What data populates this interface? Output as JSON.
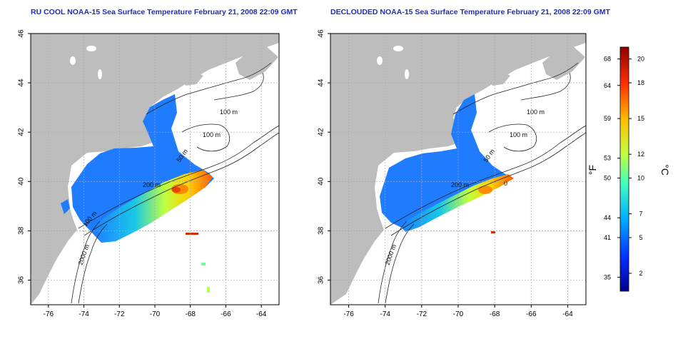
{
  "panels": [
    {
      "title": "RU COOL NOAA-15 Sea Surface Temperature February 21, 2008 22:09 GMT",
      "contours": [
        "100 m",
        "100 m",
        "50 m",
        "200 m",
        "100 m",
        "2000 m"
      ]
    },
    {
      "title": "DECLOUDED NOAA-15 Sea Surface Temperature February 21, 2008 22:09 GMT",
      "contours": [
        "100 m",
        "100 m",
        "50 m",
        "200 m",
        "0",
        "2000 m"
      ]
    }
  ],
  "axes": {
    "x_ticks": [
      "-76",
      "-74",
      "-72",
      "-70",
      "-68",
      "-66",
      "-64"
    ],
    "y_ticks": [
      "36",
      "38",
      "40",
      "42",
      "44",
      "46"
    ],
    "xlim": [
      -77,
      -63
    ],
    "ylim": [
      35,
      46
    ]
  },
  "colorbar": {
    "unit_f": "°F",
    "unit_c": "°C",
    "f_ticks": [
      "68",
      "64",
      "59",
      "53",
      "50",
      "44",
      "41",
      "35"
    ],
    "c_ticks": [
      "20",
      "18",
      "15",
      "12",
      "10",
      "7",
      "5",
      "2"
    ],
    "colors": [
      "#00008f",
      "#0040ff",
      "#00bfff",
      "#40ffbf",
      "#bfff40",
      "#ffbf00",
      "#ff4000",
      "#8f0000"
    ]
  },
  "colors": {
    "land": "#bdbdbd",
    "frame": "#000000",
    "title": "#1f2fb5"
  }
}
